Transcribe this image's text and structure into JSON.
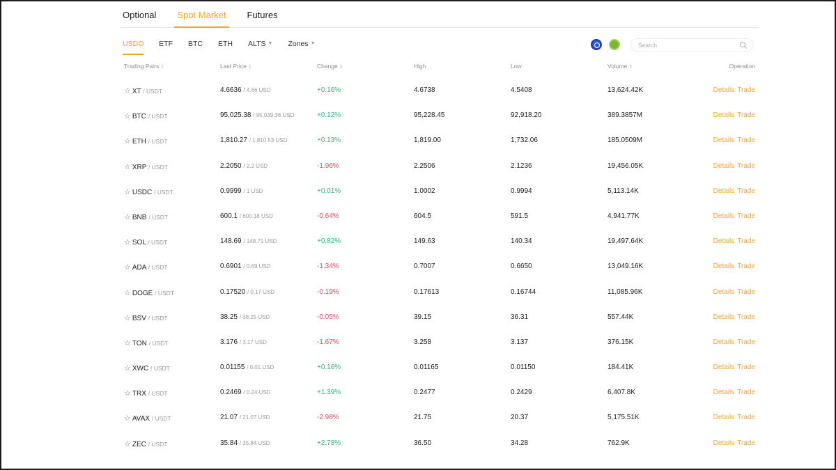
{
  "top_tabs": [
    "Optional",
    "Spot Market",
    "Futures"
  ],
  "sub_tabs": [
    {
      "label": "USD"
    },
    {
      "label": "ETF"
    },
    {
      "label": "BTC"
    },
    {
      "label": "ETH"
    },
    {
      "label": "ALTS"
    },
    {
      "label": "Zones"
    }
  ],
  "search": {
    "placeholder": "Search",
    "value": ""
  },
  "headers": {
    "pair": "Trading Pairs",
    "price": "Last Price",
    "change": "Change",
    "high": "High",
    "low": "Low",
    "volume": "Volume",
    "operation": "Operation"
  },
  "operations": {
    "details": "Details",
    "trade": "Trade"
  },
  "colors": {
    "accent": "#f5a524",
    "up": "#2eb872",
    "down": "#e84a5f"
  },
  "rows": [
    {
      "base": "XT",
      "quote": "/ USDT",
      "price": "4.6636",
      "usd": "/ 4.66 USD",
      "change": "+0.16%",
      "dir": "up",
      "high": "4.6738",
      "low": "4.5408",
      "volume": "13,624.42K"
    },
    {
      "base": "BTC",
      "quote": "/ USDT",
      "price": "95,025.38",
      "usd": "/ 95,039.36 USD",
      "change": "+0.12%",
      "dir": "up",
      "high": "95,228.45",
      "low": "92,918.20",
      "volume": "389.3857M"
    },
    {
      "base": "ETH",
      "quote": "/ USDT",
      "price": "1,810.27",
      "usd": "/ 1,810.53 USD",
      "change": "+0.13%",
      "dir": "up",
      "high": "1,819.00",
      "low": "1,732.06",
      "volume": "185.0509M"
    },
    {
      "base": "XRP",
      "quote": "/ USDT",
      "price": "2.2050",
      "usd": "/ 2.2 USD",
      "change": "-1.96%",
      "dir": "down",
      "high": "2.2506",
      "low": "2.1236",
      "volume": "19,456.05K"
    },
    {
      "base": "USDC",
      "quote": "/ USDT",
      "price": "0.9999",
      "usd": "/ 1 USD",
      "change": "+0.01%",
      "dir": "up",
      "high": "1.0002",
      "low": "0.9994",
      "volume": "5,113.14K"
    },
    {
      "base": "BNB",
      "quote": "/ USDT",
      "price": "600.1",
      "usd": "/ 600.18 USD",
      "change": "-0.64%",
      "dir": "down",
      "high": "604.5",
      "low": "591.5",
      "volume": "4,941.77K"
    },
    {
      "base": "SOL",
      "quote": "/ USDT",
      "price": "148.69",
      "usd": "/ 148.71 USD",
      "change": "+0.82%",
      "dir": "up",
      "high": "149.63",
      "low": "140.34",
      "volume": "19,497.64K"
    },
    {
      "base": "ADA",
      "quote": "/ USDT",
      "price": "0.6901",
      "usd": "/ 0.69 USD",
      "change": "-1.34%",
      "dir": "down",
      "high": "0.7007",
      "low": "0.6650",
      "volume": "13,049.16K"
    },
    {
      "base": "DOGE",
      "quote": "/ USDT",
      "price": "0.17520",
      "usd": "/ 0.17 USD",
      "change": "-0.19%",
      "dir": "down",
      "high": "0.17613",
      "low": "0.16744",
      "volume": "11,085.96K"
    },
    {
      "base": "BSV",
      "quote": "/ USDT",
      "price": "38.25",
      "usd": "/ 38.25 USD",
      "change": "-0.05%",
      "dir": "down",
      "high": "39.15",
      "low": "36.31",
      "volume": "557.44K"
    },
    {
      "base": "TON",
      "quote": "/ USDT",
      "price": "3.176",
      "usd": "/ 3.17 USD",
      "change": "-1.67%",
      "dir": "down",
      "high": "3.258",
      "low": "3.137",
      "volume": "376.15K"
    },
    {
      "base": "XWC",
      "quote": "/ USDT",
      "price": "0.01155",
      "usd": "/ 0.01 USD",
      "change": "+0.16%",
      "dir": "up",
      "high": "0.01165",
      "low": "0.01150",
      "volume": "184.41K"
    },
    {
      "base": "TRX",
      "quote": "/ USDT",
      "price": "0.2469",
      "usd": "/ 0.24 USD",
      "change": "+1.39%",
      "dir": "up",
      "high": "0.2477",
      "low": "0.2429",
      "volume": "6,407.8K"
    },
    {
      "base": "AVAX",
      "quote": "/ USDT",
      "price": "21.07",
      "usd": "/ 21.07 USD",
      "change": "-2.98%",
      "dir": "down",
      "high": "21.75",
      "low": "20.37",
      "volume": "5,175.51K"
    },
    {
      "base": "ZEC",
      "quote": "/ USDT",
      "price": "35.84",
      "usd": "/ 35.84 USD",
      "change": "+2.78%",
      "dir": "up",
      "high": "36.50",
      "low": "34.28",
      "volume": "762.9K"
    }
  ]
}
